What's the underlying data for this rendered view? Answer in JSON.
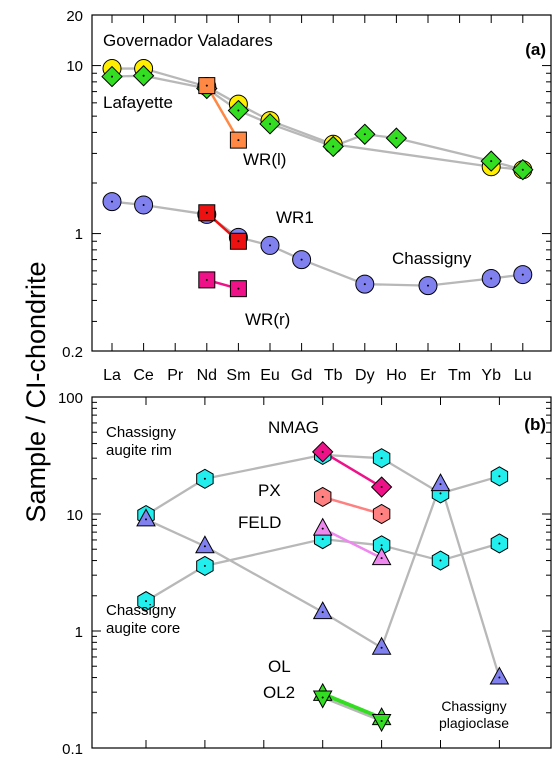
{
  "figure": {
    "ylabel": "Sample / CI-chondrite"
  },
  "colors": {
    "yellow": "#ffee00",
    "green": "#33dd22",
    "orange": "#ff8844",
    "blue": "#8080ee",
    "red": "#ee1111",
    "magenta": "#ee1188",
    "cyan": "#22eeee",
    "salmon": "#ff8080",
    "violet": "#ee88ee",
    "gray": "#b8b8b8"
  },
  "chart_data": [
    {
      "type": "line",
      "panel": "(a)",
      "ylog": true,
      "ylim": [
        0.2,
        20
      ],
      "yticks": [
        "20",
        "10",
        "1",
        "0.2"
      ],
      "categories": [
        "La",
        "Ce",
        "Pr",
        "Nd",
        "Sm",
        "Eu",
        "Gd",
        "Tb",
        "Dy",
        "Ho",
        "Er",
        "Tm",
        "Yb",
        "Lu"
      ],
      "series": [
        {
          "name": "Governador Valadares",
          "marker": "circle",
          "color": "yellow",
          "points": [
            [
              "La",
              9.6
            ],
            [
              "Ce",
              9.6
            ],
            [
              "Nd",
              7.5
            ],
            [
              "Sm",
              5.9
            ],
            [
              "Eu",
              4.7
            ],
            [
              "Tb",
              3.4
            ],
            [
              "Yb",
              2.5
            ],
            [
              "Lu",
              2.4
            ]
          ]
        },
        {
          "name": "Lafayette",
          "marker": "diamond",
          "color": "green",
          "points": [
            [
              "La",
              8.6
            ],
            [
              "Ce",
              8.7
            ],
            [
              "Nd",
              7.3
            ],
            [
              "Sm",
              5.4
            ],
            [
              "Eu",
              4.5
            ],
            [
              "Tb",
              3.3
            ],
            [
              "Dy",
              3.9
            ],
            [
              "Ho",
              3.7
            ],
            [
              "Yb",
              2.7
            ],
            [
              "Lu",
              2.4
            ]
          ]
        },
        {
          "name": "WR(l)",
          "marker": "square",
          "color": "orange",
          "line": "orange",
          "points": [
            [
              "Nd",
              7.6
            ],
            [
              "Sm",
              3.6
            ]
          ]
        },
        {
          "name": "Chassigny",
          "marker": "circle",
          "color": "blue",
          "points": [
            [
              "La",
              1.55
            ],
            [
              "Ce",
              1.48
            ],
            [
              "Nd",
              1.3
            ],
            [
              "Sm",
              0.95
            ],
            [
              "Eu",
              0.85
            ],
            [
              "Gd",
              0.7
            ],
            [
              "Dy",
              0.5
            ],
            [
              "Er",
              0.49
            ],
            [
              "Yb",
              0.54
            ],
            [
              "Lu",
              0.57
            ]
          ]
        },
        {
          "name": "WR1",
          "marker": "square",
          "color": "red",
          "line": "red",
          "points": [
            [
              "Nd",
              1.33
            ],
            [
              "Sm",
              0.9
            ]
          ]
        },
        {
          "name": "WR(r)",
          "marker": "square",
          "color": "magenta",
          "line": "magenta",
          "points": [
            [
              "Nd",
              0.53
            ],
            [
              "Sm",
              0.47
            ]
          ]
        }
      ],
      "labels": [
        "Governador Valadares",
        "Lafayette",
        "WR(l)",
        "WR1",
        "Chassigny",
        "WR(r)"
      ]
    },
    {
      "type": "line",
      "panel": "(b)",
      "ylog": true,
      "ylim": [
        0.1,
        100
      ],
      "yticks": [
        "100",
        "10",
        "1",
        "0.1"
      ],
      "categories": [
        "La",
        "Ce",
        "Pr",
        "Nd",
        "Sm",
        "Eu",
        "Gd"
      ],
      "series": [
        {
          "name": "Chassigny augite rim",
          "marker": "hexagon",
          "color": "cyan",
          "points": [
            [
              "La",
              9.8
            ],
            [
              "Ce",
              20
            ],
            [
              "Nd",
              32
            ],
            [
              "Sm",
              30
            ],
            [
              "Eu",
              15
            ],
            [
              "Gd",
              21
            ]
          ]
        },
        {
          "name": "Chassigny augite core",
          "marker": "hexagon",
          "color": "cyan",
          "points": [
            [
              "La",
              1.8
            ],
            [
              "Ce",
              3.6
            ],
            [
              "Nd",
              6.1
            ],
            [
              "Sm",
              5.4
            ],
            [
              "Eu",
              4.0
            ],
            [
              "Gd",
              5.6
            ]
          ]
        },
        {
          "name": "Chassigny plagioclase",
          "marker": "triangle",
          "color": "blue",
          "points": [
            [
              "La",
              9.0
            ],
            [
              "Ce",
              5.3
            ],
            [
              "Nd",
              1.45
            ],
            [
              "Sm",
              0.72
            ],
            [
              "Eu",
              18
            ],
            [
              "Gd",
              0.4
            ]
          ]
        },
        {
          "name": "NMAG",
          "marker": "diamond",
          "color": "magenta",
          "line": "magenta",
          "points": [
            [
              "Nd",
              34
            ],
            [
              "Sm",
              17
            ]
          ]
        },
        {
          "name": "PX",
          "marker": "hexagon",
          "color": "salmon",
          "line": "salmon",
          "points": [
            [
              "Nd",
              14
            ],
            [
              "Sm",
              10
            ]
          ]
        },
        {
          "name": "FELD",
          "marker": "triangle",
          "color": "violet",
          "line": "violet",
          "points": [
            [
              "Nd",
              7.5
            ],
            [
              "Sm",
              4.2
            ]
          ]
        },
        {
          "name": "OL",
          "marker": "triangle",
          "color": "green",
          "line": "green",
          "points": [
            [
              "Nd",
              0.29
            ],
            [
              "Sm",
              0.18
            ]
          ]
        },
        {
          "name": "OL2",
          "marker": "triangle-down",
          "color": "green",
          "points": [
            [
              "Nd",
              0.27
            ],
            [
              "Sm",
              0.17
            ]
          ]
        }
      ],
      "labels": [
        "Chassigny",
        "augite rim",
        "Chassigny",
        "augite core",
        "NMAG",
        "PX",
        "FELD",
        "OL",
        "OL2",
        "Chassigny",
        "plagioclase"
      ]
    }
  ]
}
